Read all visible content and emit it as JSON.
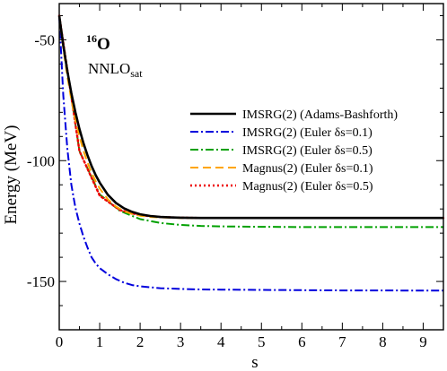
{
  "chart_data": {
    "type": "line",
    "xlabel": "s",
    "ylabel": "Energy (MeV)",
    "xlim": [
      0,
      9.5
    ],
    "ylim": [
      -170,
      -35
    ],
    "xticks": [
      0,
      1,
      2,
      3,
      4,
      5,
      6,
      7,
      8,
      9
    ],
    "yticks": [
      -50,
      -100,
      -150
    ],
    "grid": false,
    "legend_position": "right",
    "annotations": {
      "nucleus_mass": "16",
      "nucleus_symbol": "O",
      "interaction_main": "NNLO",
      "interaction_sub": "sat"
    },
    "series": [
      {
        "name": "IMSRG(2) (Adams-Bashforth)",
        "color": "#000000",
        "dash": "solid",
        "x": [
          0,
          0.05,
          0.1,
          0.2,
          0.3,
          0.4,
          0.5,
          0.6,
          0.7,
          0.8,
          0.9,
          1.0,
          1.2,
          1.4,
          1.6,
          1.8,
          2.0,
          2.25,
          2.5,
          2.75,
          3.0,
          3.5,
          4.0,
          5.0,
          6.0,
          7.0,
          8.0,
          9.0,
          9.5
        ],
        "y": [
          -40.0,
          -46.3,
          -52.2,
          -62.9,
          -72.1,
          -80.0,
          -86.9,
          -92.8,
          -97.8,
          -102.2,
          -105.9,
          -109.1,
          -114.1,
          -117.5,
          -119.7,
          -121.2,
          -122.2,
          -122.9,
          -123.3,
          -123.5,
          -123.6,
          -123.7,
          -123.7,
          -123.7,
          -123.7,
          -123.7,
          -123.7,
          -123.7,
          -123.7
        ]
      },
      {
        "name": "IMSRG(2) (Euler δs=0.1)",
        "color": "#0000dd",
        "dash": "dashdot",
        "x": [
          0,
          0.1,
          0.2,
          0.3,
          0.4,
          0.5,
          0.6,
          0.7,
          0.8,
          0.9,
          1.0,
          1.2,
          1.4,
          1.6,
          1.8,
          2.0,
          2.5,
          3.0,
          3.5,
          4.0,
          5.0,
          6.0,
          7.0,
          8.0,
          9.0,
          9.5
        ],
        "y": [
          -40.0,
          -73.0,
          -95.0,
          -110.0,
          -119.5,
          -126.0,
          -131.5,
          -136.0,
          -140.0,
          -142.5,
          -144.5,
          -147.0,
          -149.0,
          -150.5,
          -151.5,
          -152.0,
          -152.8,
          -153.1,
          -153.3,
          -153.4,
          -153.5,
          -153.6,
          -153.7,
          -153.7,
          -153.8,
          -153.8
        ]
      },
      {
        "name": "IMSRG(2) (Euler δs=0.5)",
        "color": "#00a000",
        "dash": "dashdot",
        "x": [
          0,
          0.5,
          1.0,
          1.5,
          2.0,
          2.5,
          3.0,
          3.5,
          4.0,
          4.5,
          5.0,
          6.0,
          7.0,
          8.0,
          9.0,
          9.5
        ],
        "y": [
          -40.0,
          -96.0,
          -114.0,
          -120.8,
          -124.2,
          -125.8,
          -126.6,
          -127.0,
          -127.2,
          -127.3,
          -127.4,
          -127.5,
          -127.5,
          -127.5,
          -127.5,
          -127.5
        ]
      },
      {
        "name": "Magnus(2) (Euler δs=0.1)",
        "color": "#ffa500",
        "dash": "dashed",
        "x": [
          0,
          0.05,
          0.1,
          0.2,
          0.3,
          0.4,
          0.5,
          0.6,
          0.7,
          0.8,
          0.9,
          1.0,
          1.2,
          1.4,
          1.6,
          1.8,
          2.0,
          2.25,
          2.5,
          2.75,
          3.0,
          3.5,
          4.0,
          5.0,
          6.0,
          7.0,
          8.0,
          9.0,
          9.5
        ],
        "y": [
          -40.0,
          -47.0,
          -53.5,
          -65.0,
          -74.8,
          -83.1,
          -90.0,
          -95.9,
          -100.8,
          -105.0,
          -108.5,
          -111.5,
          -116.0,
          -119.0,
          -120.9,
          -122.1,
          -122.8,
          -123.3,
          -123.5,
          -123.6,
          -123.7,
          -123.7,
          -123.7,
          -123.7,
          -123.7,
          -123.7,
          -123.7,
          -123.7,
          -123.7
        ]
      },
      {
        "name": "Magnus(2) (Euler δs=0.5)",
        "color": "#ee0000",
        "dash": "dotted",
        "x": [
          0,
          0.5,
          1.0,
          1.5,
          2.0,
          2.5,
          3.0,
          3.5,
          4.0,
          5.0,
          6.0,
          7.0,
          8.0,
          9.0,
          9.5
        ],
        "y": [
          -40.0,
          -96.0,
          -114.5,
          -120.5,
          -122.6,
          -123.3,
          -123.6,
          -123.7,
          -123.7,
          -123.7,
          -123.7,
          -123.7,
          -123.7,
          -123.7,
          -123.7
        ]
      }
    ]
  }
}
